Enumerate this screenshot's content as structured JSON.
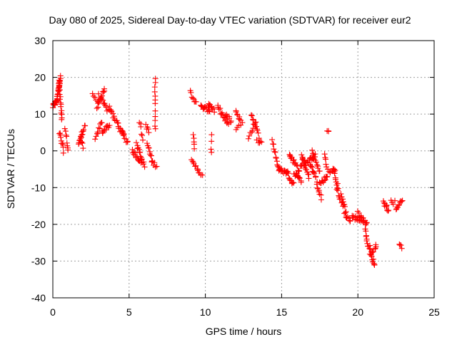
{
  "chart_data": {
    "type": "scatter",
    "title": "Day 080 of 2025, Sidereal Day-to-day VTEC variation (SDTVAR) for receiver eur2",
    "xlabel": "GPS time / hours",
    "ylabel": "SDTVAR / TECUs",
    "xlim": [
      0,
      25
    ],
    "ylim": [
      -40,
      30
    ],
    "xticks": [
      0,
      5,
      10,
      15,
      20,
      25
    ],
    "xtick_labels": [
      "0",
      "5",
      "10",
      "15",
      "20",
      "25"
    ],
    "yticks": [
      -40,
      -30,
      -20,
      -10,
      0,
      10,
      20,
      30
    ],
    "ytick_labels": [
      "-40",
      "-30",
      "-20",
      "-10",
      "0",
      "10",
      "20",
      "30"
    ],
    "grid": true,
    "marker": "+",
    "color": "#ff0000",
    "series": [
      {
        "name": "eur2",
        "segments": [
          [
            0.0,
            12.0,
            0.3,
            14.0,
            16.0
          ],
          [
            0.3,
            15.0,
            0.5,
            20.0,
            20.0
          ],
          [
            0.4,
            19.0,
            0.6,
            8.0,
            16.0
          ],
          [
            0.45,
            5.0,
            0.7,
            0.0,
            10.0
          ],
          [
            0.8,
            6.0,
            1.0,
            0.0,
            8.0
          ],
          [
            1.7,
            2.0,
            2.1,
            7.0,
            14.0
          ],
          [
            1.8,
            3.0,
            2.0,
            1.0,
            5.0
          ],
          [
            2.6,
            15.0,
            3.0,
            13.0,
            6.0
          ],
          [
            2.9,
            12.0,
            3.4,
            17.0,
            12.0
          ],
          [
            3.0,
            15.0,
            3.6,
            11.0,
            12.0
          ],
          [
            2.8,
            3.0,
            3.2,
            8.0,
            10.0
          ],
          [
            3.2,
            5.0,
            3.7,
            7.0,
            12.0
          ],
          [
            3.7,
            12.0,
            4.1,
            8.0,
            10.0
          ],
          [
            4.2,
            8.0,
            4.6,
            4.0,
            12.0
          ],
          [
            4.5,
            6.0,
            4.9,
            2.0,
            10.0
          ],
          [
            5.2,
            0.0,
            5.8,
            -3.0,
            14.0
          ],
          [
            5.5,
            2.0,
            6.0,
            -4.0,
            14.0
          ],
          [
            5.7,
            8.0,
            5.9,
            3.0,
            6.0
          ],
          [
            6.1,
            7.0,
            6.3,
            5.0,
            5.0
          ],
          [
            6.2,
            2.0,
            6.5,
            -3.0,
            10.0
          ],
          [
            6.5,
            -3.0,
            6.8,
            -4.0,
            6.0
          ],
          [
            6.7,
            20.0,
            6.7,
            6.0,
            12.0
          ],
          [
            9.0,
            16.0,
            9.4,
            13.0,
            8.0
          ],
          [
            9.2,
            5.0,
            9.3,
            1.0,
            5.0
          ],
          [
            9.1,
            -3.0,
            9.5,
            -5.0,
            8.0
          ],
          [
            9.5,
            -5.0,
            9.8,
            -7.0,
            6.0
          ],
          [
            9.7,
            12.0,
            10.3,
            11.0,
            14.0
          ],
          [
            10.2,
            13.0,
            10.6,
            11.0,
            8.0
          ],
          [
            10.4,
            4.0,
            10.4,
            -1.0,
            4.0
          ],
          [
            10.8,
            12.0,
            11.5,
            7.0,
            16.0
          ],
          [
            11.3,
            10.0,
            11.7,
            8.0,
            8.0
          ],
          [
            12.0,
            11.0,
            12.3,
            8.0,
            8.0
          ],
          [
            12.0,
            6.0,
            12.4,
            8.0,
            5.0
          ],
          [
            12.8,
            3.0,
            13.3,
            8.0,
            8.0
          ],
          [
            13.0,
            10.0,
            13.5,
            4.0,
            12.0
          ],
          [
            13.4,
            3.0,
            13.7,
            2.0,
            5.0
          ],
          [
            14.4,
            3.0,
            14.8,
            -5.0,
            12.0
          ],
          [
            14.8,
            -5.0,
            15.4,
            -6.0,
            14.0
          ],
          [
            15.2,
            -5.0,
            15.8,
            -9.0,
            14.0
          ],
          [
            15.5,
            -1.0,
            16.0,
            -4.0,
            12.0
          ],
          [
            15.8,
            -6.0,
            16.3,
            -8.0,
            12.0
          ],
          [
            16.0,
            -6.0,
            16.5,
            -3.0,
            10.0
          ],
          [
            16.3,
            -1.0,
            16.8,
            -7.0,
            14.0
          ],
          [
            16.5,
            -4.0,
            17.2,
            -1.0,
            16.0
          ],
          [
            16.8,
            -3.0,
            17.3,
            -8.0,
            12.0
          ],
          [
            17.0,
            0.0,
            17.5,
            -6.0,
            12.0
          ],
          [
            17.3,
            -9.0,
            17.6,
            -13.0,
            8.0
          ],
          [
            17.5,
            -9.0,
            18.0,
            -7.0,
            12.0
          ],
          [
            17.8,
            -1.0,
            18.0,
            -5.0,
            6.0
          ],
          [
            18.0,
            6.0,
            18.1,
            5.0,
            3.0
          ],
          [
            18.1,
            -6.0,
            18.5,
            -5.0,
            8.0
          ],
          [
            18.4,
            -5.0,
            18.7,
            -10.0,
            10.0
          ],
          [
            18.6,
            -10.0,
            19.0,
            -15.0,
            10.0
          ],
          [
            18.9,
            -12.0,
            19.2,
            -16.0,
            8.0
          ],
          [
            19.1,
            -17.0,
            19.5,
            -19.0,
            8.0
          ],
          [
            19.6,
            -18.0,
            20.3,
            -19.0,
            16.0
          ],
          [
            20.0,
            -17.0,
            20.6,
            -20.0,
            16.0
          ],
          [
            20.5,
            -21.0,
            20.6,
            -25.0,
            6.0
          ],
          [
            20.6,
            -25.0,
            21.0,
            -28.0,
            10.0
          ],
          [
            20.8,
            -28.0,
            21.1,
            -31.0,
            10.0
          ],
          [
            21.1,
            -27.0,
            21.2,
            -25.0,
            4.0
          ],
          [
            21.7,
            -14.0,
            22.0,
            -16.0,
            10.0
          ],
          [
            22.2,
            -14.0,
            22.4,
            -14.0,
            4.0
          ],
          [
            22.5,
            -16.0,
            22.9,
            -13.0,
            10.0
          ],
          [
            22.7,
            -26.0,
            22.9,
            -26.0,
            4.0
          ]
        ]
      }
    ]
  }
}
